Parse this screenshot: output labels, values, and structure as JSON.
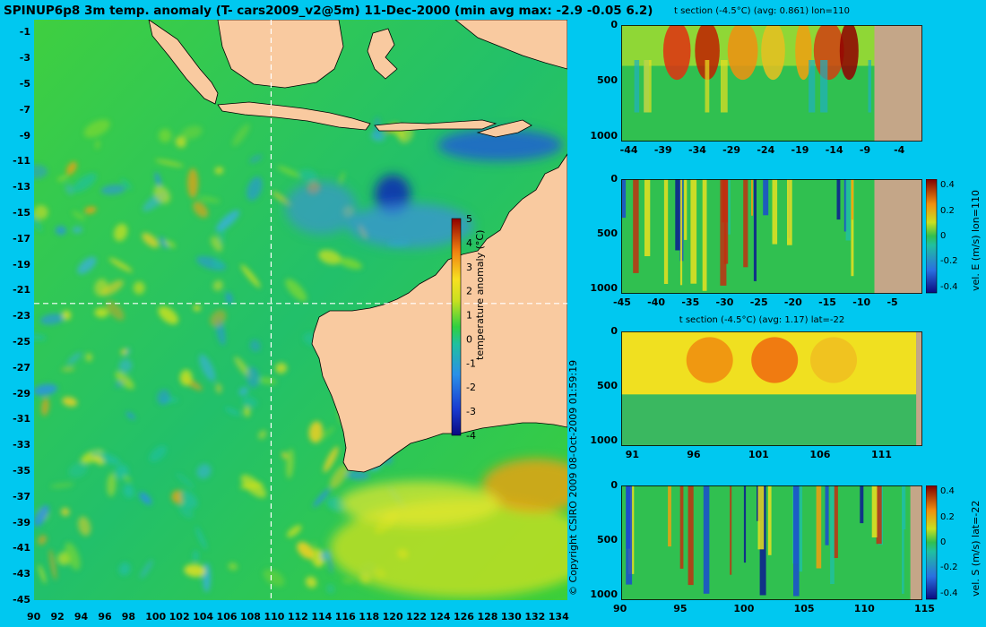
{
  "main_title": "SPINUP6p8 3m temp. anomaly (T- cars2009_v2@5m) 11-Dec-2000 (min avg max: -2.9 -0.05 6.2)",
  "copyright": "© Copyright CSIRO 2009   08-Oct-2009 01:59:19",
  "colors": {
    "background": "#00c8f0",
    "land": "#f9caa0",
    "land_section": "#c4a688",
    "crosshair": "#ffffff"
  },
  "chart_data": [
    {
      "type": "heatmap",
      "title": "SPINUP6p8 3m temp. anomaly (T- cars2009_v2@5m) 11-Dec-2000 (min avg max: -2.9 -0.05 6.2)",
      "xlabel": "",
      "ylabel": "",
      "x_ticks": [
        "90",
        "92",
        "94",
        "96",
        "98",
        "100",
        "102",
        "104",
        "106",
        "108",
        "110",
        "112",
        "114",
        "116",
        "118",
        "120",
        "122",
        "124",
        "126",
        "128",
        "130",
        "132",
        "134"
      ],
      "y_ticks": [
        "-1",
        "-3",
        "-5",
        "-7",
        "-9",
        "-11",
        "-13",
        "-15",
        "-17",
        "-19",
        "-21",
        "-23",
        "-25",
        "-27",
        "-29",
        "-31",
        "-33",
        "-35",
        "-37",
        "-39",
        "-41",
        "-43",
        "-45"
      ],
      "xlim": [
        90,
        135
      ],
      "ylim": [
        -45,
        0
      ],
      "crosshair": {
        "lon": 110,
        "lat": -22
      },
      "colorbar": {
        "label": "temperature anomaly (°C)",
        "ticks": [
          "5",
          "4",
          "3",
          "2",
          "1",
          "0",
          "-1",
          "-2",
          "-3",
          "-4"
        ],
        "range": [
          -4,
          5
        ]
      },
      "stats": {
        "min": -2.9,
        "avg": -0.05,
        "max": 6.2
      }
    },
    {
      "type": "heatmap",
      "title": "t section (-4.5°C) (avg: 0.861) lon=110",
      "x_ticks": [
        "-44",
        "-39",
        "-34",
        "-29",
        "-24",
        "-19",
        "-14",
        "-9",
        "-4"
      ],
      "y_ticks": [
        "0",
        "500",
        "1000"
      ],
      "xlim": [
        -45,
        -1
      ],
      "ylim": [
        1050,
        0
      ],
      "land_from": -8,
      "avg": 0.861
    },
    {
      "type": "heatmap",
      "title": "",
      "x_ticks": [
        "-45",
        "-40",
        "-35",
        "-30",
        "-25",
        "-20",
        "-15",
        "-10",
        "-5"
      ],
      "y_ticks": [
        "0",
        "500",
        "1000"
      ],
      "xlim": [
        -45,
        -1
      ],
      "ylim": [
        1050,
        0
      ],
      "land_from": -8,
      "colorbar": {
        "label": "vel. E (m/s) lon=110",
        "ticks": [
          "0.4",
          "0.2",
          "0",
          "-0.2",
          "-0.4"
        ],
        "range": [
          -0.45,
          0.45
        ]
      }
    },
    {
      "type": "heatmap",
      "title": "t section (-4.5°C) (avg: 1.17) lat=-22",
      "x_ticks": [
        "91",
        "96",
        "101",
        "106",
        "111"
      ],
      "y_ticks": [
        "0",
        "500",
        "1000"
      ],
      "xlim": [
        90,
        114.5
      ],
      "ylim": [
        1050,
        0
      ],
      "land_from": 114,
      "avg": 1.17
    },
    {
      "type": "heatmap",
      "title": "",
      "x_ticks": [
        "90",
        "95",
        "100",
        "105",
        "110",
        "115"
      ],
      "y_ticks": [
        "0",
        "500",
        "1000"
      ],
      "xlim": [
        90,
        115
      ],
      "ylim": [
        1050,
        0
      ],
      "land_from": 114,
      "colorbar": {
        "label": "vel. S (m/s) lat=-22",
        "ticks": [
          "0.4",
          "0.2",
          "0",
          "-0.2",
          "-0.4"
        ],
        "range": [
          -0.45,
          0.45
        ]
      }
    }
  ]
}
